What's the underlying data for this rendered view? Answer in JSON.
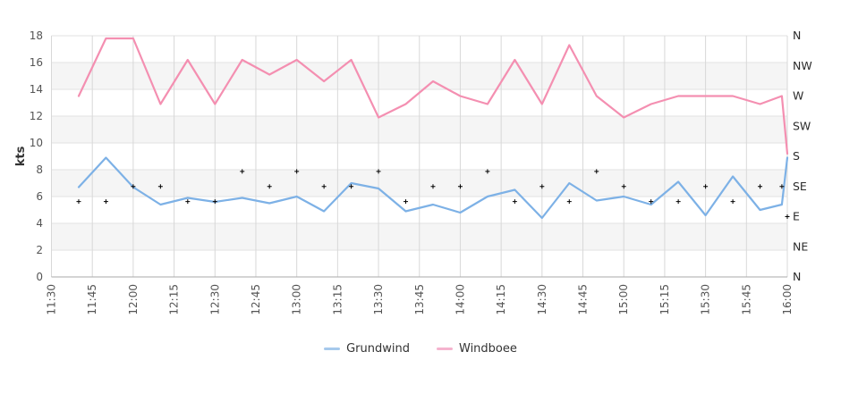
{
  "chart_data": {
    "type": "line",
    "title": "",
    "ylabel": "kts",
    "ylim": [
      0,
      18
    ],
    "yticks": [
      0,
      2,
      4,
      6,
      8,
      10,
      12,
      14,
      16,
      18
    ],
    "grid": true,
    "legend_position": "bottom",
    "x_axis": {
      "start": "11:30",
      "end": "16:00",
      "tick_interval_min": 15,
      "tick_labels": [
        "11:30",
        "11:45",
        "12:00",
        "12:15",
        "12:30",
        "12:45",
        "13:00",
        "13:15",
        "13:30",
        "13:45",
        "14:00",
        "14:15",
        "14:30",
        "14:45",
        "15:00",
        "15:15",
        "15:30",
        "15:45",
        "16:00"
      ]
    },
    "right_axis": {
      "unit": "wind-direction-degrees",
      "labels": [
        "N",
        "NW",
        "W",
        "SW",
        "S",
        "SE",
        "E",
        "NE",
        "N"
      ],
      "degrees": [
        360,
        315,
        270,
        225,
        180,
        135,
        90,
        45,
        0
      ],
      "degrees_per_kt": 20
    },
    "times": [
      "11:40",
      "11:50",
      "12:00",
      "12:10",
      "12:20",
      "12:30",
      "12:40",
      "12:50",
      "13:00",
      "13:10",
      "13:20",
      "13:30",
      "13:40",
      "13:50",
      "14:00",
      "14:10",
      "14:20",
      "14:30",
      "14:40",
      "14:50",
      "15:00",
      "15:10",
      "15:20",
      "15:30",
      "15:40",
      "15:50",
      "15:58",
      "16:00"
    ],
    "series": [
      {
        "name": "Grundwind",
        "color": "#7db1e6",
        "values": [
          6.7,
          8.9,
          6.7,
          5.4,
          5.9,
          5.6,
          5.9,
          5.5,
          6.0,
          4.9,
          7.0,
          6.6,
          4.9,
          5.4,
          4.8,
          6.0,
          6.5,
          4.4,
          7.0,
          5.7,
          6.0,
          5.4,
          7.1,
          4.6,
          7.5,
          5.0,
          5.4,
          8.9
        ]
      },
      {
        "name": "Windboee",
        "color": "#f48fb1",
        "values": [
          13.5,
          17.8,
          17.8,
          12.9,
          16.2,
          12.9,
          16.2,
          15.1,
          16.2,
          14.6,
          16.2,
          11.9,
          12.9,
          14.6,
          13.5,
          12.9,
          16.2,
          12.9,
          17.3,
          13.5,
          11.9,
          12.9,
          13.5,
          13.5,
          13.5,
          12.9,
          13.5,
          9.2
        ]
      }
    ],
    "wind_direction_markers": {
      "symbol": "plus",
      "color": "#000000",
      "directions": [
        "ESE",
        "ESE",
        "SE",
        "SE",
        "ESE",
        "ESE",
        "SSE",
        "SE",
        "SSE",
        "SE",
        "SE",
        "SSE",
        "ESE",
        "SE",
        "SE",
        "SSE",
        "ESE",
        "SE",
        "ESE",
        "SSE",
        "SE",
        "ESE",
        "ESE",
        "SE",
        "ESE",
        "SE",
        "SE",
        "E"
      ],
      "degrees": [
        112.5,
        112.5,
        135,
        135,
        112.5,
        112.5,
        157.5,
        135,
        157.5,
        135,
        135,
        157.5,
        112.5,
        135,
        135,
        157.5,
        112.5,
        135,
        112.5,
        157.5,
        135,
        112.5,
        112.5,
        135,
        112.5,
        135,
        135,
        90
      ]
    }
  },
  "legend": {
    "items": [
      {
        "label": "Grundwind",
        "color": "#a6c9ec"
      },
      {
        "label": "Windboee",
        "color": "#f5b3ce"
      }
    ]
  },
  "colors": {
    "background": "#ffffff",
    "band_gray": "#f5f5f5",
    "band_white": "#ffffff",
    "grid_horizontal": "#e2e2e2",
    "grid_vertical": "#d8d8d8",
    "axis_line": "#aaaaaa",
    "tick_text": "#555555",
    "right_axis_text": "#2b2b2b",
    "axis_title_text": "#333333"
  }
}
